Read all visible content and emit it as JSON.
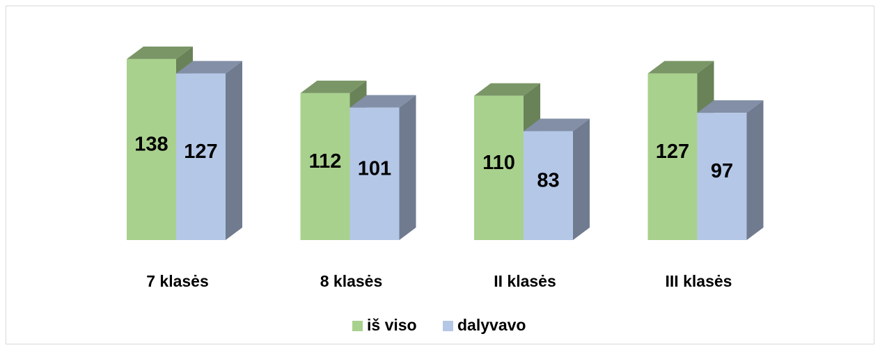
{
  "chart_data": {
    "type": "bar3d",
    "categories": [
      "7 klasės",
      "8 klasės",
      "II klasės",
      "III klasės"
    ],
    "series": [
      {
        "name": "iš viso",
        "color": "#a9d18e",
        "values": [
          138,
          112,
          110,
          127
        ]
      },
      {
        "name": "dalyvavo",
        "color": "#b4c7e7",
        "values": [
          127,
          101,
          83,
          97
        ]
      }
    ],
    "legend": "bottom"
  }
}
